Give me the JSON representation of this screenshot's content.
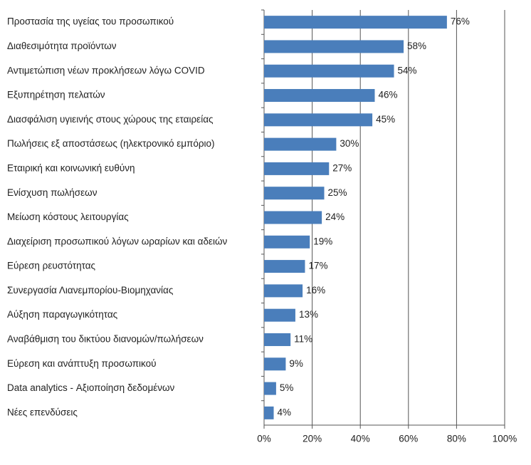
{
  "chart_data": {
    "type": "bar",
    "orientation": "horizontal",
    "categories": [
      "Προστασία της υγείας του προσωπικού",
      "Διαθεσιμότητα προϊόντων",
      "Αντιμετώπιση νέων προκλήσεων λόγω COVID",
      "Εξυπηρέτηση πελατών",
      "Διασφάλιση υγιεινής στους χώρους της εταιρείας",
      "Πωλήσεις εξ αποστάσεως (ηλεκτρονικό εμπόριο)",
      "Εταιρική και κοινωνική ευθύνη",
      "Ενίσχυση πωλήσεων",
      "Μείωση κόστους λειτουργίας",
      "Διαχείριση προσωπικού λόγων ωραρίων και αδειών",
      "Εύρεση ρευστότητας",
      "Συνεργασία Λιανεμπορίου-Βιομηχανίας",
      "Αύξηση παραγωγικότητας",
      "Αναβάθμιση του δικτύου διανομών/πωλήσεων",
      "Εύρεση και ανάπτυξη προσωπικού",
      "Data analytics - Αξιοποίηση δεδομένων",
      "Νέες επενδύσεις"
    ],
    "values": [
      76,
      58,
      54,
      46,
      45,
      30,
      27,
      25,
      24,
      19,
      17,
      16,
      13,
      11,
      9,
      5,
      4
    ],
    "value_labels": [
      "76%",
      "58%",
      "54%",
      "46%",
      "45%",
      "30%",
      "27%",
      "25%",
      "24%",
      "19%",
      "17%",
      "16%",
      "13%",
      "11%",
      "9%",
      "5%",
      "4%"
    ],
    "color": "#4a7ebb",
    "xlim": [
      0,
      100
    ],
    "xticks": [
      {
        "value": 0,
        "label": "0%"
      },
      {
        "value": 20,
        "label": "20%"
      },
      {
        "value": 40,
        "label": "40%"
      },
      {
        "value": 60,
        "label": "60%"
      },
      {
        "value": 80,
        "label": "80%"
      },
      {
        "value": 100,
        "label": "100%"
      }
    ],
    "grid": true
  }
}
